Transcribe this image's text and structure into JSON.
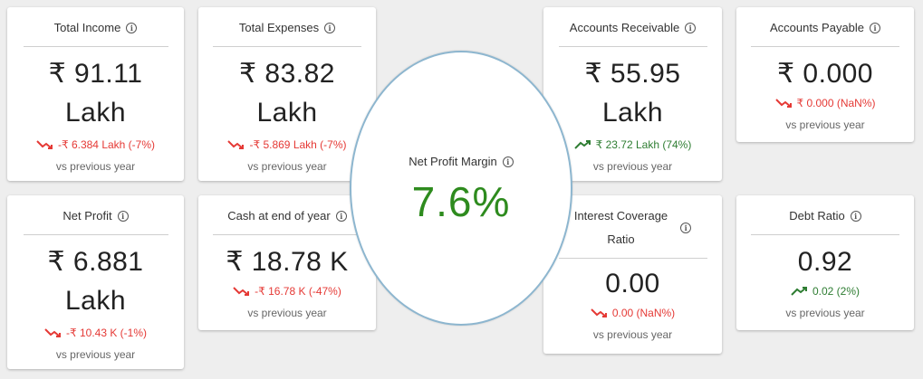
{
  "cards": {
    "total_income": {
      "title": "Total Income",
      "value_line1": "₹ 91.11",
      "value_line2": "Lakh",
      "change": "-₹ 6.384 Lakh (-7%)",
      "trend": "down",
      "compare": "vs previous year"
    },
    "total_expenses": {
      "title": "Total Expenses",
      "value_line1": "₹ 83.82",
      "value_line2": "Lakh",
      "change": "-₹ 5.869 Lakh (-7%)",
      "trend": "down",
      "compare": "vs previous year"
    },
    "accounts_receivable": {
      "title": "Accounts Receivable",
      "value_line1": "₹ 55.95",
      "value_line2": "Lakh",
      "change": "₹ 23.72 Lakh (74%)",
      "trend": "up",
      "compare": "vs previous year"
    },
    "accounts_payable": {
      "title": "Accounts Payable",
      "value_line1": "₹ 0.000",
      "change": "₹ 0.000 (NaN%)",
      "trend": "down",
      "compare": "vs previous year"
    },
    "net_profit": {
      "title": "Net Profit",
      "value_line1": "₹ 6.881",
      "value_line2": "Lakh",
      "change": "-₹ 10.43 K (-1%)",
      "trend": "down",
      "compare": "vs previous year"
    },
    "cash_end_of_year": {
      "title": "Cash at end of year",
      "value_line1": "₹ 18.78 K",
      "change": "-₹ 16.78 K (-47%)",
      "trend": "down",
      "compare": "vs previous year"
    },
    "interest_coverage_ratio": {
      "title_line1": "Interest Coverage",
      "title_line2": "Ratio",
      "value_line1": "0.00",
      "change": "0.00 (NaN%)",
      "trend": "down",
      "compare": "vs previous year"
    },
    "debt_ratio": {
      "title": "Debt Ratio",
      "value_line1": "0.92",
      "change": "0.02 (2%)",
      "trend": "up",
      "compare": "vs previous year"
    }
  },
  "highlight": {
    "title": "Net Profit Margin",
    "value": "7.6%"
  },
  "colors": {
    "down": "#e53935",
    "up": "#2e7d32",
    "highlight_value": "#2e8b1e",
    "ellipse_border": "#8db6cf"
  },
  "icons": {
    "info": "info-circle-icon",
    "down": "trending-down-icon",
    "up": "trending-up-icon"
  }
}
